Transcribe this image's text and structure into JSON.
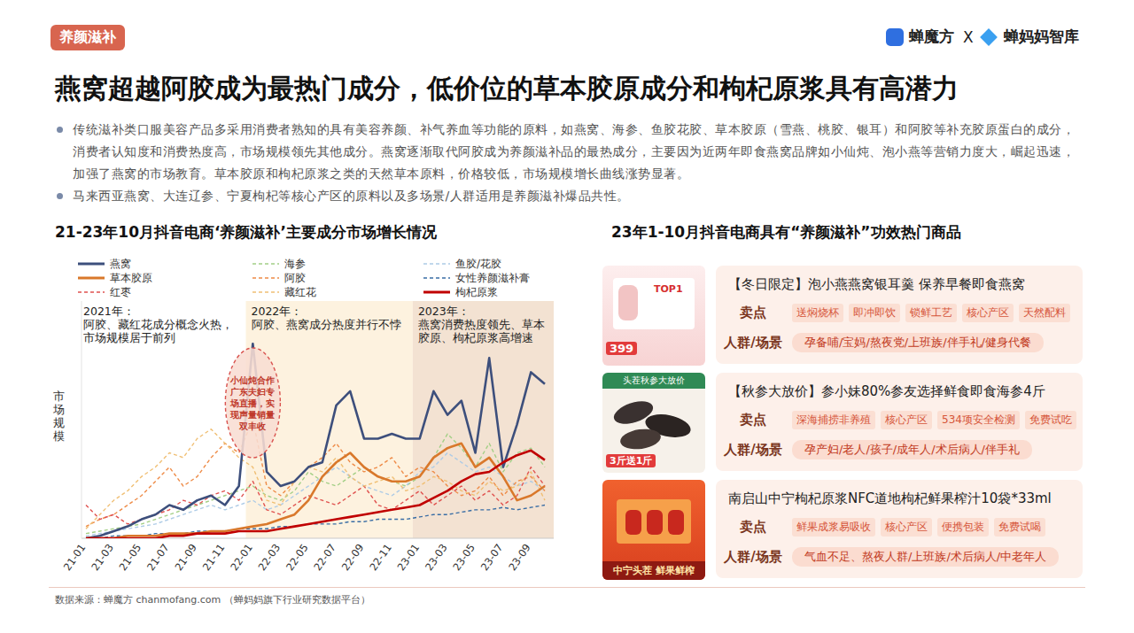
{
  "header": {
    "tag": "养颜滋补",
    "logos": [
      "蝉魔方",
      "X",
      "蝉妈妈智库"
    ],
    "title": "燕窝超越阿胶成为最热门成分，低价位的草本胶原成分和枸杞原浆具有高潜力"
  },
  "bullets": [
    "传统滋补类口服美容产品多采用消费者熟知的具有美容养颜、补气养血等功能的原料，如燕窝、海参、鱼胶花胶、草本胶原（雪燕、桃胶、银耳）和阿胶等补充胶原蛋白的成分，消费者认知度和消费热度高，市场规模领先其他成分。燕窝逐渐取代阿胶成为养颜滋补品的最热成分，主要因为近两年即食燕窝品牌如小仙炖、泡小燕等营销力度大，崛起迅速，加强了燕窝的市场教育。草本胶原和枸杞原浆之类的天然草本原料，价格较低，市场规模增长曲线涨势显著。",
    "马来西亚燕窝、大连辽参、宁夏枸杞等核心产区的原料以及多场景/人群适用是养颜滋补爆品共性。"
  ],
  "chart_data": {
    "type": "line",
    "title": "21-23年10月抖音电商‘养颜滋补’主要成分市场增长情况",
    "y_label": "市场规模",
    "categories": [
      "21-01",
      null,
      "21-03",
      null,
      "21-05",
      null,
      "21-07",
      null,
      "21-09",
      null,
      "21-11",
      null,
      "22-01",
      null,
      "22-03",
      null,
      "22-05",
      null,
      "22-07",
      null,
      "22-09",
      null,
      "22-11",
      null,
      "23-01",
      null,
      "23-03",
      null,
      "23-05",
      null,
      "23-07",
      null,
      "23-09",
      null
    ],
    "ylim": [
      0,
      100
    ],
    "yticks": [],
    "tick_labels": "x",
    "grid": false,
    "legend": "top",
    "series": [
      {
        "name": "燕窝",
        "color": "#3d4f7c",
        "line_style": "solid",
        "values": [
          0,
          1,
          3,
          5,
          8,
          10,
          14,
          12,
          16,
          18,
          14,
          22,
          82,
          28,
          22,
          24,
          30,
          32,
          56,
          62,
          42,
          42,
          44,
          42,
          42,
          62,
          52,
          58,
          36,
          76,
          30,
          48,
          70,
          65
        ]
      },
      {
        "name": "海参",
        "color": "#a3cf86",
        "line_style": "dashed",
        "values": [
          2,
          3,
          4,
          5,
          6,
          8,
          10,
          12,
          14,
          16,
          18,
          20,
          22,
          18,
          16,
          20,
          28,
          24,
          22,
          26,
          30,
          26,
          24,
          22,
          26,
          34,
          44,
          38,
          30,
          40,
          28,
          36,
          38,
          30
        ]
      },
      {
        "name": "鱼胶/花胶",
        "color": "#adcbe6",
        "line_style": "dashed",
        "values": [
          1,
          2,
          3,
          4,
          5,
          6,
          8,
          10,
          12,
          14,
          12,
          14,
          16,
          12,
          14,
          18,
          22,
          26,
          30,
          26,
          22,
          20,
          18,
          22,
          28,
          30,
          36,
          32,
          28,
          30,
          26,
          22,
          24,
          20
        ]
      },
      {
        "name": "草本胶原",
        "color": "#d9782b",
        "line_style": "solid",
        "values": [
          0,
          0,
          0,
          1,
          1,
          1,
          2,
          2,
          2,
          3,
          3,
          4,
          5,
          6,
          8,
          10,
          16,
          26,
          32,
          36,
          30,
          26,
          24,
          24,
          26,
          34,
          38,
          40,
          30,
          34,
          26,
          16,
          18,
          22
        ]
      },
      {
        "name": "阿胶",
        "color": "#ee8b47",
        "line_style": "dashed",
        "values": [
          5,
          8,
          10,
          14,
          18,
          24,
          30,
          22,
          26,
          34,
          40,
          36,
          50,
          22,
          18,
          24,
          30,
          34,
          40,
          32,
          28,
          30,
          34,
          26,
          30,
          28,
          22,
          18,
          20,
          26,
          18,
          24,
          26,
          20
        ]
      },
      {
        "name": "女性养颜滋补膏",
        "color": "#3a6ea5",
        "line_style": "dashed",
        "values": [
          0,
          0,
          1,
          1,
          1,
          2,
          2,
          2,
          3,
          3,
          3,
          4,
          4,
          4,
          5,
          5,
          6,
          6,
          6,
          7,
          7,
          8,
          8,
          8,
          9,
          10,
          10,
          11,
          12,
          12,
          13,
          12,
          13,
          14
        ]
      },
      {
        "name": "红枣",
        "color": "#e0524f",
        "line_style": "dashed",
        "values": [
          14,
          8,
          10,
          6,
          8,
          10,
          12,
          16,
          14,
          18,
          20,
          16,
          24,
          12,
          10,
          14,
          18,
          16,
          14,
          18,
          22,
          14,
          12,
          16,
          20,
          14,
          18,
          22,
          16,
          20,
          14,
          18,
          30,
          22
        ]
      },
      {
        "name": "藏红花",
        "color": "#f0bf74",
        "line_style": "dashed",
        "values": [
          4,
          10,
          16,
          20,
          26,
          30,
          36,
          34,
          42,
          46,
          40,
          34,
          30,
          16,
          14,
          24,
          30,
          28,
          34,
          26,
          22,
          24,
          26,
          20,
          22,
          26,
          24,
          20,
          18,
          24,
          20,
          22,
          28,
          16
        ]
      },
      {
        "name": "枸杞原浆",
        "color": "#c00000",
        "line_style": "solid",
        "values": [
          0,
          0,
          0,
          0,
          0,
          0,
          1,
          1,
          2,
          2,
          2,
          3,
          3,
          3,
          4,
          5,
          6,
          7,
          8,
          9,
          10,
          11,
          12,
          13,
          14,
          17,
          20,
          24,
          27,
          28,
          32,
          35,
          37,
          33
        ]
      }
    ],
    "annotations": [
      {
        "title": "2021年：",
        "lines": [
          "阿胶、藏红花成分概念火热，",
          "市场规模居于前列"
        ]
      },
      {
        "title": "2022年：",
        "lines": [
          "阿胶、燕窝成分热度并行不悖"
        ]
      },
      {
        "title": "2023年：",
        "lines": [
          "燕窝消费热度领先、草本",
          "胶原、枸杞原浆高增速"
        ]
      }
    ],
    "callout": "小仙炖合作广东夫妇专场直播，实现声量销量双丰收"
  },
  "products": {
    "title": "23年1-10月抖音电商具有“养颜滋补”功效热门商品",
    "selling_label": "卖点",
    "audience_label": "人群/场景",
    "items": [
      {
        "title": "【冬日限定】泡小燕燕窝银耳羹 保养早餐即食燕窝",
        "selling_points": [
          "送焖烧杯",
          "即冲即饮",
          "锁鲜工艺",
          "核心产区",
          "天然配料"
        ],
        "audience": "孕备哺/宝妈/熬夜党/上班族/伴手礼/健身代餐",
        "image_texts": [
          "TOP1",
          "399"
        ]
      },
      {
        "title": "【秋参大放价】参小妹80%参友选择鲜食即食海参4斤",
        "selling_points": [
          "深海捕捞非养殖",
          "核心产区",
          "534项安全检测",
          "免费试吃"
        ],
        "audience": "孕产妇/老人/孩子/成年人/术后病人/伴手礼",
        "image_texts": [
          "头茬秋参大放价",
          "3斤送1斤"
        ]
      },
      {
        "title": "南启山中宁枸杞原浆NFC道地枸杞鲜果榨汁10袋*33ml",
        "selling_points": [
          "鲜果成浆易吸收",
          "核心产区",
          "便携包装",
          "免费试喝"
        ],
        "audience": "气血不足、熬夜人群/上班族/术后病人/中老年人",
        "image_texts": [
          "中宁头茬 鲜果鲜榨"
        ]
      }
    ]
  },
  "source": "数据来源：蝉魔方 chanmofang.com （蝉妈妈旗下行业研究数据平台）"
}
